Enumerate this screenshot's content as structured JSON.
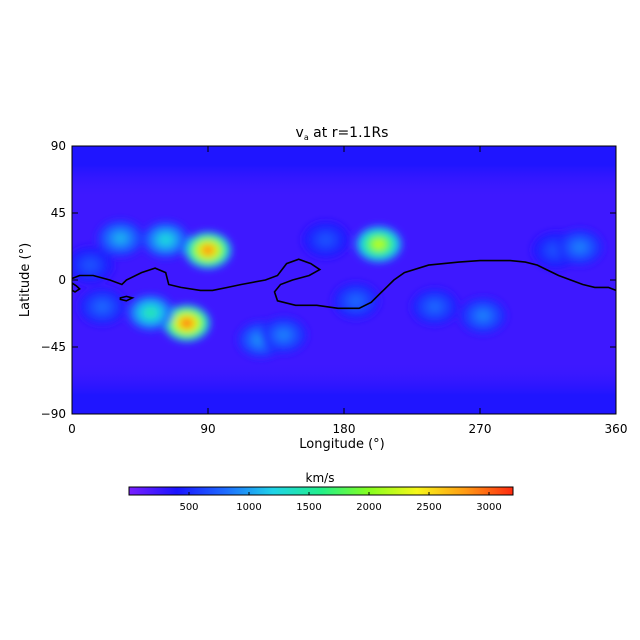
{
  "chart_data": {
    "type": "heatmap",
    "title": "v",
    "title_subscript": "a",
    "title_suffix": " at r=1.1Rs",
    "xlabel": "Longitude (°)",
    "ylabel": "Latitude (°)",
    "xlim": [
      0,
      360
    ],
    "ylim": [
      -90,
      90
    ],
    "xticks": [
      0,
      90,
      180,
      270,
      360
    ],
    "yticks": [
      90,
      45,
      0,
      -45,
      -90
    ],
    "xtick_labels": [
      "0",
      "90",
      "180",
      "270",
      "360"
    ],
    "ytick_labels": [
      "90",
      "45",
      "0",
      "−45",
      "−90"
    ],
    "colorbar": {
      "label": "km/s",
      "range": [
        0,
        3200
      ],
      "ticks": [
        500,
        1000,
        1500,
        2000,
        2500,
        3000
      ],
      "tick_labels": [
        "500",
        "1000",
        "1500",
        "2000",
        "2500",
        "3000"
      ],
      "colors": [
        "#7a1fff",
        "#1a14ff",
        "#1e6bff",
        "#1fd3e8",
        "#22ef8a",
        "#86ff1f",
        "#f7f71a",
        "#ff9b14",
        "#ff2a10"
      ]
    },
    "background_value": 250,
    "polar_band_value": 380,
    "hotspots": [
      {
        "lon": 90,
        "lat": 20,
        "peak": 3000
      },
      {
        "lon": 76,
        "lat": -29,
        "peak": 3100
      },
      {
        "lon": 203,
        "lat": 24,
        "peak": 2300
      },
      {
        "lon": 62,
        "lat": 27,
        "peak": 1300
      },
      {
        "lon": 52,
        "lat": -22,
        "peak": 1500
      },
      {
        "lon": 32,
        "lat": 28,
        "peak": 1100
      },
      {
        "lon": 125,
        "lat": -40,
        "peak": 1000
      },
      {
        "lon": 140,
        "lat": -37,
        "peak": 900
      },
      {
        "lon": 168,
        "lat": 27,
        "peak": 700
      },
      {
        "lon": 188,
        "lat": -14,
        "peak": 800
      },
      {
        "lon": 240,
        "lat": -18,
        "peak": 800
      },
      {
        "lon": 272,
        "lat": -24,
        "peak": 900
      },
      {
        "lon": 320,
        "lat": 20,
        "peak": 700
      },
      {
        "lon": 336,
        "lat": 22,
        "peak": 900
      },
      {
        "lon": 12,
        "lat": 10,
        "peak": 700
      },
      {
        "lon": 20,
        "lat": -18,
        "peak": 800
      }
    ],
    "neutral_line": [
      [
        0,
        1
      ],
      [
        5,
        3
      ],
      [
        14,
        3
      ],
      [
        25,
        0
      ],
      [
        33,
        -3
      ],
      [
        36,
        0
      ],
      [
        46,
        5
      ],
      [
        55,
        8
      ],
      [
        62,
        5
      ],
      [
        64,
        -3
      ],
      [
        72,
        -5
      ],
      [
        85,
        -7
      ],
      [
        93,
        -7
      ],
      [
        103,
        -5
      ],
      [
        112,
        -3
      ],
      [
        128,
        0
      ],
      [
        136,
        3
      ],
      [
        142,
        11
      ],
      [
        150,
        14
      ],
      [
        158,
        11
      ],
      [
        164,
        7
      ],
      [
        157,
        3
      ],
      [
        146,
        0
      ],
      [
        138,
        -3
      ],
      [
        134,
        -8
      ],
      [
        136,
        -14
      ],
      [
        148,
        -17
      ],
      [
        162,
        -17
      ],
      [
        176,
        -19
      ],
      [
        190,
        -19
      ],
      [
        198,
        -15
      ],
      [
        206,
        -7
      ],
      [
        213,
        0
      ],
      [
        220,
        5
      ],
      [
        236,
        10
      ],
      [
        256,
        12
      ],
      [
        270,
        13
      ],
      [
        290,
        13
      ],
      [
        300,
        12
      ],
      [
        308,
        10
      ],
      [
        314,
        7
      ],
      [
        322,
        3
      ],
      [
        330,
        0
      ],
      [
        338,
        -3
      ],
      [
        346,
        -5
      ],
      [
        355,
        -5
      ],
      [
        360,
        -7
      ]
    ],
    "neutral_loops": [
      [
        [
          0,
          -2
        ],
        [
          3,
          -4
        ],
        [
          5,
          -6
        ],
        [
          2,
          -8
        ],
        [
          0,
          -7
        ]
      ],
      [
        [
          32,
          -12
        ],
        [
          36,
          -11
        ],
        [
          40,
          -12
        ],
        [
          36,
          -14
        ],
        [
          32,
          -13
        ]
      ]
    ]
  }
}
